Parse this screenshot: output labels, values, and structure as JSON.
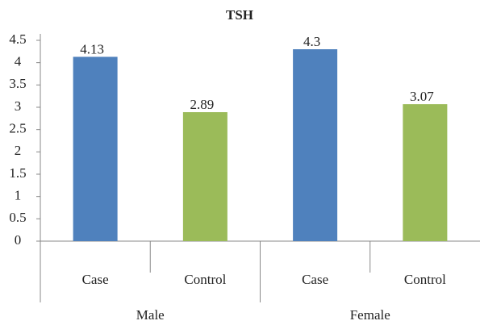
{
  "chart_data": {
    "type": "bar",
    "title": "TSH",
    "categories": [
      "Case",
      "Control",
      "Case",
      "Control"
    ],
    "groups": [
      "Male",
      "Female"
    ],
    "values": [
      4.13,
      2.89,
      4.3,
      3.07
    ],
    "colors": [
      "#4f81bd",
      "#9bbb59",
      "#4f81bd",
      "#9bbb59"
    ],
    "ylim": [
      0,
      4.5
    ],
    "yticks": [
      0,
      0.5,
      1,
      1.5,
      2,
      2.5,
      3,
      3.5,
      4,
      4.5
    ],
    "grid": false
  }
}
